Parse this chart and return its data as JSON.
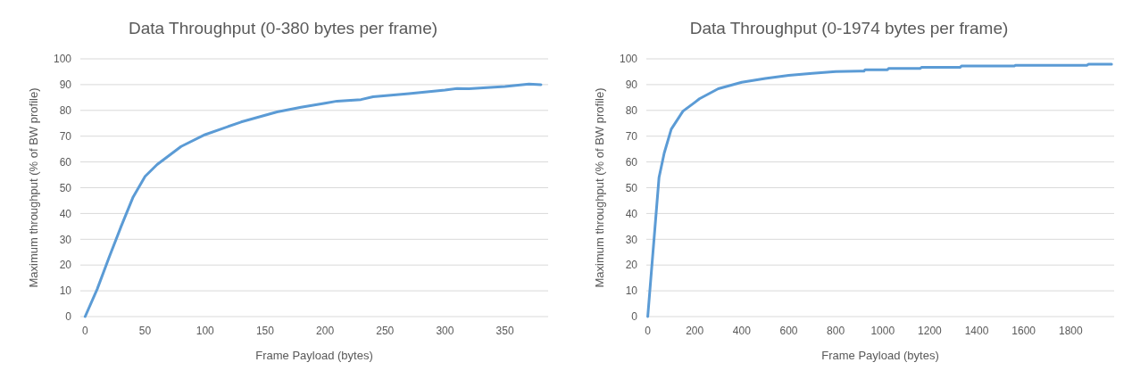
{
  "chart_data": [
    {
      "type": "line",
      "title": "Data Throughput (0-380 bytes per frame)",
      "xlabel": "Frame Payload (bytes)",
      "ylabel": "Maximum throughput (% of BW profile)",
      "xlim": [
        -4,
        386
      ],
      "xticks": [
        0,
        50,
        100,
        150,
        200,
        250,
        300,
        350
      ],
      "ylim": [
        0,
        100
      ],
      "yticks": [
        0,
        10,
        20,
        30,
        40,
        50,
        60,
        70,
        80,
        90,
        100
      ],
      "grid": "y",
      "line_style": "solid",
      "marker": "none",
      "series": [
        {
          "color": "#5b9bd5",
          "x": [
            0,
            10,
            20,
            30,
            40,
            50,
            60,
            80,
            100,
            130,
            150,
            160,
            180,
            200,
            210,
            230,
            240,
            270,
            300,
            310,
            320,
            350,
            370,
            380
          ],
          "values": [
            0,
            10.6,
            23,
            35,
            46.4,
            54.4,
            59,
            66,
            70.6,
            75.5,
            78.1,
            79.4,
            81.2,
            82.8,
            83.6,
            84.2,
            85.3,
            86.5,
            87.9,
            88.5,
            88.4,
            89.3,
            90.2,
            90
          ]
        }
      ]
    },
    {
      "type": "line",
      "title": "Data Throughput (0-1974 bytes per frame)",
      "xlabel": "Frame Payload (bytes)",
      "ylabel": "Maximum throughput (% of BW profile)",
      "xlim": [
        -6,
        1985
      ],
      "xticks": [
        0,
        200,
        400,
        600,
        800,
        1000,
        1200,
        1400,
        1600,
        1800
      ],
      "ylim": [
        0,
        100
      ],
      "yticks": [
        0,
        10,
        20,
        30,
        40,
        50,
        60,
        70,
        80,
        90,
        100
      ],
      "grid": "y",
      "line_style": "solid",
      "marker": "none",
      "series": [
        {
          "color": "#5b9bd5",
          "x": [
            0,
            48,
            70,
            100,
            150,
            200,
            220,
            300,
            400,
            500,
            600,
            700,
            800,
            900,
            920,
            925,
            1020,
            1025,
            1160,
            1165,
            1330,
            1335,
            1560,
            1565,
            1870,
            1875,
            1974
          ],
          "values": [
            0,
            54,
            63.4,
            72.7,
            79.7,
            83.1,
            84.5,
            88.4,
            90.9,
            92.4,
            93.6,
            94.4,
            95.1,
            95.2,
            95.2,
            95.8,
            95.8,
            96.3,
            96.3,
            96.7,
            96.7,
            97.2,
            97.2,
            97.5,
            97.5,
            97.9,
            97.9
          ]
        }
      ]
    }
  ]
}
